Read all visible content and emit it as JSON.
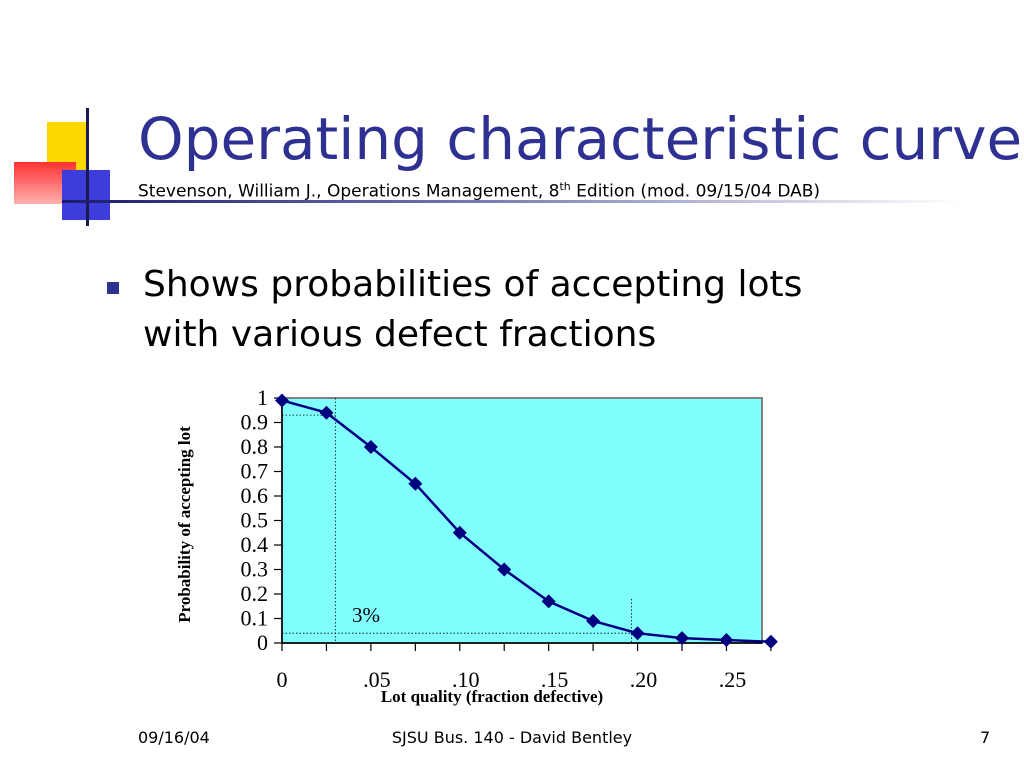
{
  "slide": {
    "title": "Operating characteristic curve",
    "subtitle_prefix": "Stevenson, William J., Operations Management, 8",
    "subtitle_sup": "th",
    "subtitle_suffix": " Edition  (mod. 09/15/04 DAB)",
    "bullet": "Shows probabilities of accepting lots with various defect fractions",
    "footer_date": "09/16/04",
    "footer_center": "SJSU Bus. 140 - David Bentley",
    "footer_page": "7",
    "colors": {
      "title": "#2e3192",
      "bullet": "#2e3192",
      "plot_bg": "#80ffff",
      "series": "#000080",
      "deco_yellow": "#ffd700",
      "deco_red": "#ff4040",
      "deco_blue": "#3d3ddb"
    }
  },
  "chart_data": {
    "type": "line",
    "ylabel": "Probability of accepting lot",
    "xlabel": "Lot quality (fraction defective)",
    "ylim": [
      0,
      1
    ],
    "xlim": [
      0,
      0.27
    ],
    "y_ticks": [
      "0",
      "0.1",
      "0.2",
      "0.3",
      "0.4",
      "0.5",
      "0.6",
      "0.7",
      "0.8",
      "0.9",
      "1"
    ],
    "x_tick_labels": [
      {
        "value": 0,
        "label": "0"
      },
      {
        "value": 0.05,
        "label": ".05"
      },
      {
        "value": 0.1,
        "label": ".10"
      },
      {
        "value": 0.15,
        "label": ".15"
      },
      {
        "value": 0.2,
        "label": ".20"
      },
      {
        "value": 0.25,
        "label": ".25"
      }
    ],
    "series": [
      {
        "x": [
          0,
          0.025,
          0.05,
          0.075,
          0.1,
          0.125,
          0.15,
          0.175,
          0.2,
          0.225,
          0.25,
          0.275
        ],
        "y": [
          0.99,
          0.94,
          0.8,
          0.65,
          0.45,
          0.3,
          0.17,
          0.09,
          0.04,
          0.02,
          0.012,
          0.005
        ]
      }
    ],
    "annotations": [
      {
        "text": "3%",
        "x": 0.03,
        "y": 0.04
      }
    ],
    "grid": false
  }
}
